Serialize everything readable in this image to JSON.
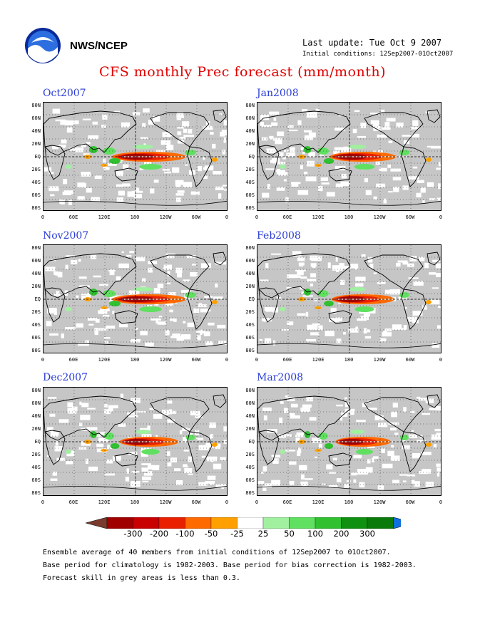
{
  "header": {
    "org": "NWS/NCEP",
    "last_update": "Last update: Tue Oct 9 2007",
    "initial_conditions": "Initial conditions: 12Sep2007-01Oct2007",
    "title": "CFS monthly Prec forecast (mm/month)"
  },
  "panels": [
    {
      "title": "Oct2007",
      "intensity": 1.0
    },
    {
      "title": "Jan2008",
      "intensity": 0.9
    },
    {
      "title": "Nov2007",
      "intensity": 1.0
    },
    {
      "title": "Feb2008",
      "intensity": 0.85
    },
    {
      "title": "Dec2007",
      "intensity": 0.8
    },
    {
      "title": "Mar2008",
      "intensity": 0.75
    }
  ],
  "lat_labels": [
    "80N",
    "60N",
    "40N",
    "20N",
    "EQ",
    "20S",
    "40S",
    "60S",
    "80S"
  ],
  "lon_labels": [
    "0",
    "60E",
    "120E",
    "180",
    "120W",
    "60W",
    "0"
  ],
  "colorbar": {
    "labels": [
      "-300",
      "-200",
      "-100",
      "-50",
      "-25",
      "25",
      "50",
      "100",
      "200",
      "300"
    ],
    "colors": [
      "#7a3b2e",
      "#a00000",
      "#c80000",
      "#e82000",
      "#ff6a00",
      "#ffa000",
      "#ffffff",
      "#a0f0a0",
      "#60e060",
      "#30c030",
      "#109010",
      "#0a7a0a",
      "#1070e0"
    ]
  },
  "footer": {
    "line1": "Ensemble average of 40 members from initial conditions of 12Sep2007 to 01Oct2007.",
    "line2": "Base period for climatology is 1982-2003. Base period for bias correction is 1982-2003.",
    "line3": "Forecast skill in grey areas is less than 0.3."
  }
}
